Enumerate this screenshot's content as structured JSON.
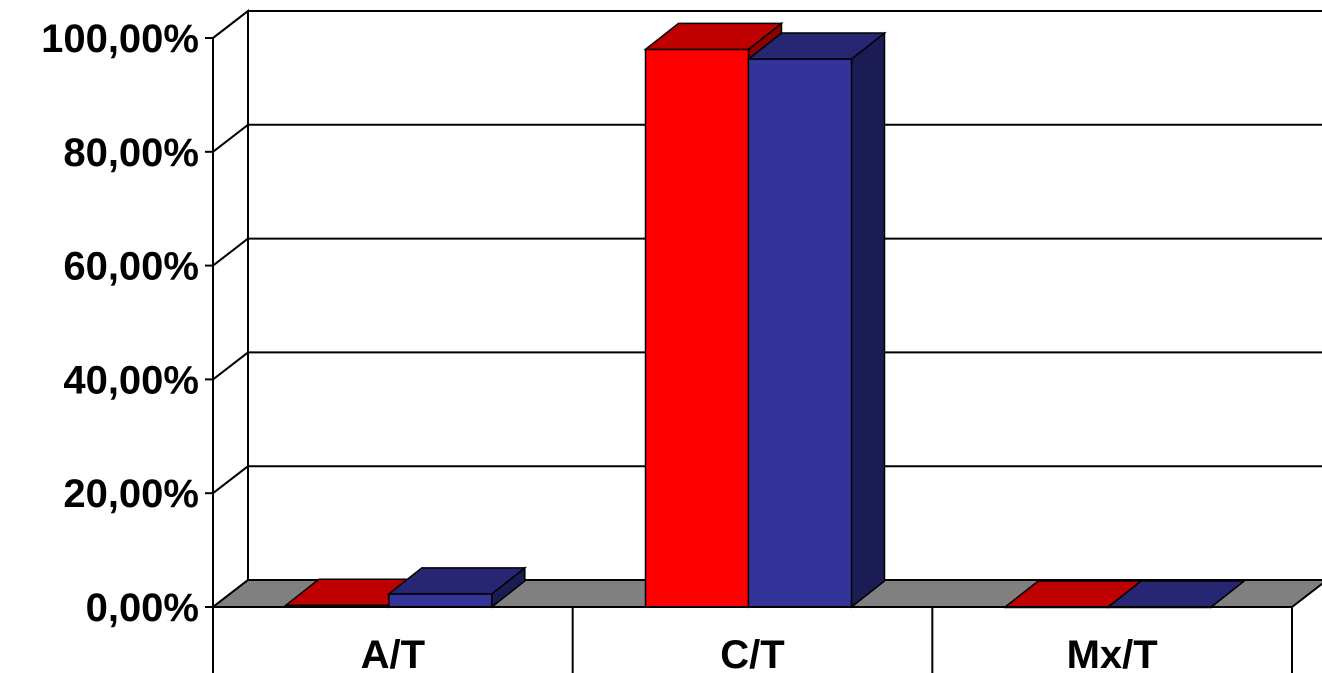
{
  "chart_data": {
    "type": "bar",
    "style": "3d-clustered",
    "categories": [
      "A/T",
      "C/T",
      "Mx/T"
    ],
    "series": [
      {
        "values": [
          0.3,
          98.0,
          0.0
        ],
        "color": "#ff0000"
      },
      {
        "values": [
          2.3,
          96.3,
          0.0
        ],
        "color": "#333399"
      }
    ],
    "ylim": [
      0,
      100
    ],
    "yticks": [
      0,
      20,
      40,
      60,
      80,
      100
    ],
    "ytick_labels": [
      "0,00%",
      "20,00%",
      "40,00%",
      "60,00%",
      "80,00%",
      "100,00%"
    ],
    "grid": true,
    "legend": "none",
    "floor_color": "#808080"
  }
}
